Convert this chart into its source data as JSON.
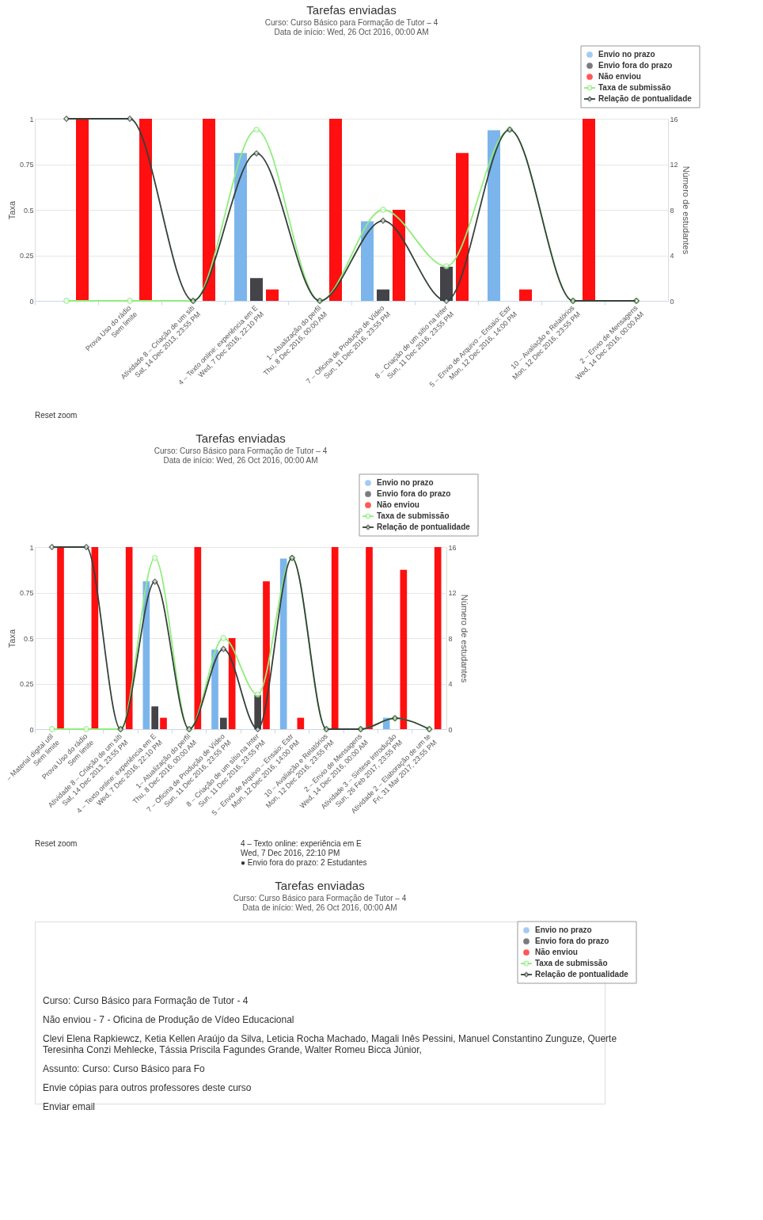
{
  "chart_data": [
    {
      "type": "bar",
      "title": "Tarefas enviadas",
      "subtitle": "Curso: Curso Básico para Formação de Tutor – 4\nData de início: Wed, 26 Oct 2016, 00:00 AM",
      "ylabel": "Taxa",
      "y2label": "Número de estudantes",
      "categories": [
        null,
        "Prova Uso do rádio\nSem limite",
        "Atividade 8 – Criação de um síti\nSat, 14 Dec 2013, 23:55 PM",
        "4 – Texto online: experiência em E\nWed, 7 Dec 2016, 22:10 PM",
        "1– Atualização do perfil\nThu, 8 Dec 2016, 00:00 AM",
        "7 – Oficina de Produção de Vídeo\nSun, 11 Dec 2016, 23:55 PM",
        "8 – Criação de um sítio na Inter\nSun, 11 Dec 2016, 23:55 PM",
        "5 – Envio de Arquivo – Ensaio: Estr\nMon, 12 Dec 2016, 14:00 PM",
        "10 – Avaliação e Relatórios\nMon, 12 Dec 2016, 23:55 PM",
        "2 – Envio de Mensagens\nWed, 14 Dec 2016, 00:00 AM"
      ],
      "series": [
        {
          "name": "Envio no prazo",
          "type": "bar",
          "axis": "y2",
          "color": "#7cb5ec",
          "values": [
            0,
            0,
            0,
            13,
            0,
            7,
            0,
            15,
            0,
            0
          ]
        },
        {
          "name": "Envio fora do prazo",
          "type": "bar",
          "axis": "y2",
          "color": "#434348",
          "values": [
            0,
            0,
            0,
            2,
            0,
            1,
            3,
            0,
            0,
            0
          ]
        },
        {
          "name": "Não enviou",
          "type": "bar",
          "axis": "y2",
          "color": "#ff0f0f",
          "values": [
            16,
            16,
            16,
            1,
            16,
            8,
            13,
            1,
            16,
            null
          ]
        },
        {
          "name": "Taxa de submissão",
          "type": "line",
          "axis": "y",
          "marker": "circle",
          "color": "#90ed7d",
          "values": [
            0,
            0,
            0,
            0.94,
            0,
            0.5,
            0.19,
            0.94,
            0,
            0
          ]
        },
        {
          "name": "Relação de pontualidade",
          "type": "line",
          "axis": "y",
          "marker": "diamond",
          "color": "#34413a",
          "values": [
            1,
            1,
            0,
            0.81,
            0,
            0.44,
            0,
            0.94,
            0,
            0
          ]
        }
      ],
      "ylim": [
        0,
        1
      ],
      "yticks": [
        0,
        0.25,
        0.5,
        0.75,
        1
      ],
      "y2lim": [
        0,
        16
      ],
      "y2ticks": [
        0,
        4,
        8,
        12,
        16
      ],
      "grid": "y",
      "legend": "top right",
      "line_style": "solid",
      "annotations": [
        "Reset zoom"
      ]
    },
    {
      "type": "bar",
      "title": "Tarefas enviadas",
      "subtitle": "Curso: Curso Básico para Formação de Tutor – 4\nData de início: Wed, 26 Oct 2016, 00:00 AM",
      "ylabel": "Taxa",
      "y2label": "Número de estudantes",
      "categories": [
        "– Material digital util\nSem limite",
        "Prova Uso do rádio\nSem limite",
        "Atividade 8 – Criação de um síti\nSat, 14 Dec 2013, 23:55 PM",
        "4 – Texto online: experiência em E\nWed, 7 Dec 2016, 22:10 PM",
        "1– Atualização do perfil\nThu, 8 Dec 2016, 00:00 AM",
        "7 – Oficina de Produção de Vídeo\nSun, 11 Dec 2016, 23:55 PM",
        "8 – Criação de um sítio na Inter\nSun, 11 Dec 2016, 23:55 PM",
        "5 – Envio de Arquivo – Ensaio: Estr\nMon, 12 Dec 2016, 14:00 PM",
        "10 – Avaliação e Relatórios\nMon, 12 Dec 2016, 23:55 PM",
        "2 – Envio de Mensagens\nWed, 14 Dec 2016, 00:00 AM",
        "Atividade 3 – Síntese Introdução\nSun, 26 Feb 2017, 23:55 PM",
        "Atividade 2 – Elaboração de um te\nFri, 31 Mar 2017, 23:55 PM"
      ],
      "series": [
        {
          "name": "Envio no prazo",
          "type": "bar",
          "axis": "y2",
          "color": "#7cb5ec",
          "values": [
            0,
            0,
            0,
            13,
            0,
            7,
            0,
            15,
            0,
            0,
            1,
            0
          ]
        },
        {
          "name": "Envio fora do prazo",
          "type": "bar",
          "axis": "y2",
          "color": "#434348",
          "values": [
            0,
            0,
            0,
            2,
            0,
            1,
            3,
            0,
            0,
            0,
            0,
            0
          ]
        },
        {
          "name": "Não enviou",
          "type": "bar",
          "axis": "y2",
          "color": "#ff0f0f",
          "values": [
            16,
            16,
            16,
            1,
            16,
            8,
            13,
            1,
            16,
            16,
            14,
            16
          ]
        },
        {
          "name": "Taxa de submissão",
          "type": "line",
          "axis": "y",
          "marker": "circle",
          "color": "#90ed7d",
          "values": [
            0,
            0,
            0,
            0.94,
            0,
            0.5,
            0.19,
            0.94,
            0,
            0,
            0.06,
            0
          ]
        },
        {
          "name": "Relação de pontualidade",
          "type": "line",
          "axis": "y",
          "marker": "diamond",
          "color": "#34413a",
          "values": [
            1,
            1,
            0,
            0.81,
            0,
            0.44,
            0,
            0.94,
            0,
            0,
            0.06,
            0
          ]
        }
      ],
      "ylim": [
        0,
        1
      ],
      "yticks": [
        0,
        0.25,
        0.5,
        0.75,
        1
      ],
      "y2lim": [
        0,
        16
      ],
      "y2ticks": [
        0,
        4,
        8,
        12,
        16
      ],
      "grid": "y",
      "legend": "top right",
      "line_style": "solid",
      "annotations": [
        "Reset zoom",
        "4 – Texto online: experiência em E\nWed, 7 Dec 2016, 22:10 PM\n● Envio fora do prazo: 2 Estudantes"
      ]
    },
    {
      "type": "other",
      "title": "Tarefas enviadas",
      "subtitle": "Curso: Curso Básico para Formação de Tutor – 4\nData de início: Wed, 26 Oct 2016, 00:00 AM",
      "legend": "top right",
      "series": [
        {
          "name": "Envio no prazo",
          "color": "#7cb5ec"
        },
        {
          "name": "Envio fora do prazo",
          "color": "#434348"
        },
        {
          "name": "Não enviou",
          "color": "#ff0f0f"
        },
        {
          "name": "Taxa de submissão",
          "color": "#90ed7d",
          "marker": "circle"
        },
        {
          "name": "Relação de pontualidade",
          "color": "#34413a",
          "marker": "diamond"
        }
      ],
      "annotations": [
        "Curso: Curso Básico para Formação de Tutor - 4",
        "Não enviou - 7 - Oficina de Produção de Vídeo Educacional",
        "Clevi Elena Rapkiewcz, Ketia Kellen Araújo da Silva, Leticia Rocha Machado, Magali Inês Pessini, Manuel Constantino Zunguze, Querte\nTeresinha Conzi Mehlecke, Tássia Priscila Fagundes Grande, Walter Romeu Bicca Júnior,",
        "Assunto: Curso: Curso Básico para Fo",
        "Envie cópias para outros professores deste curso",
        "Enviar email"
      ]
    }
  ]
}
